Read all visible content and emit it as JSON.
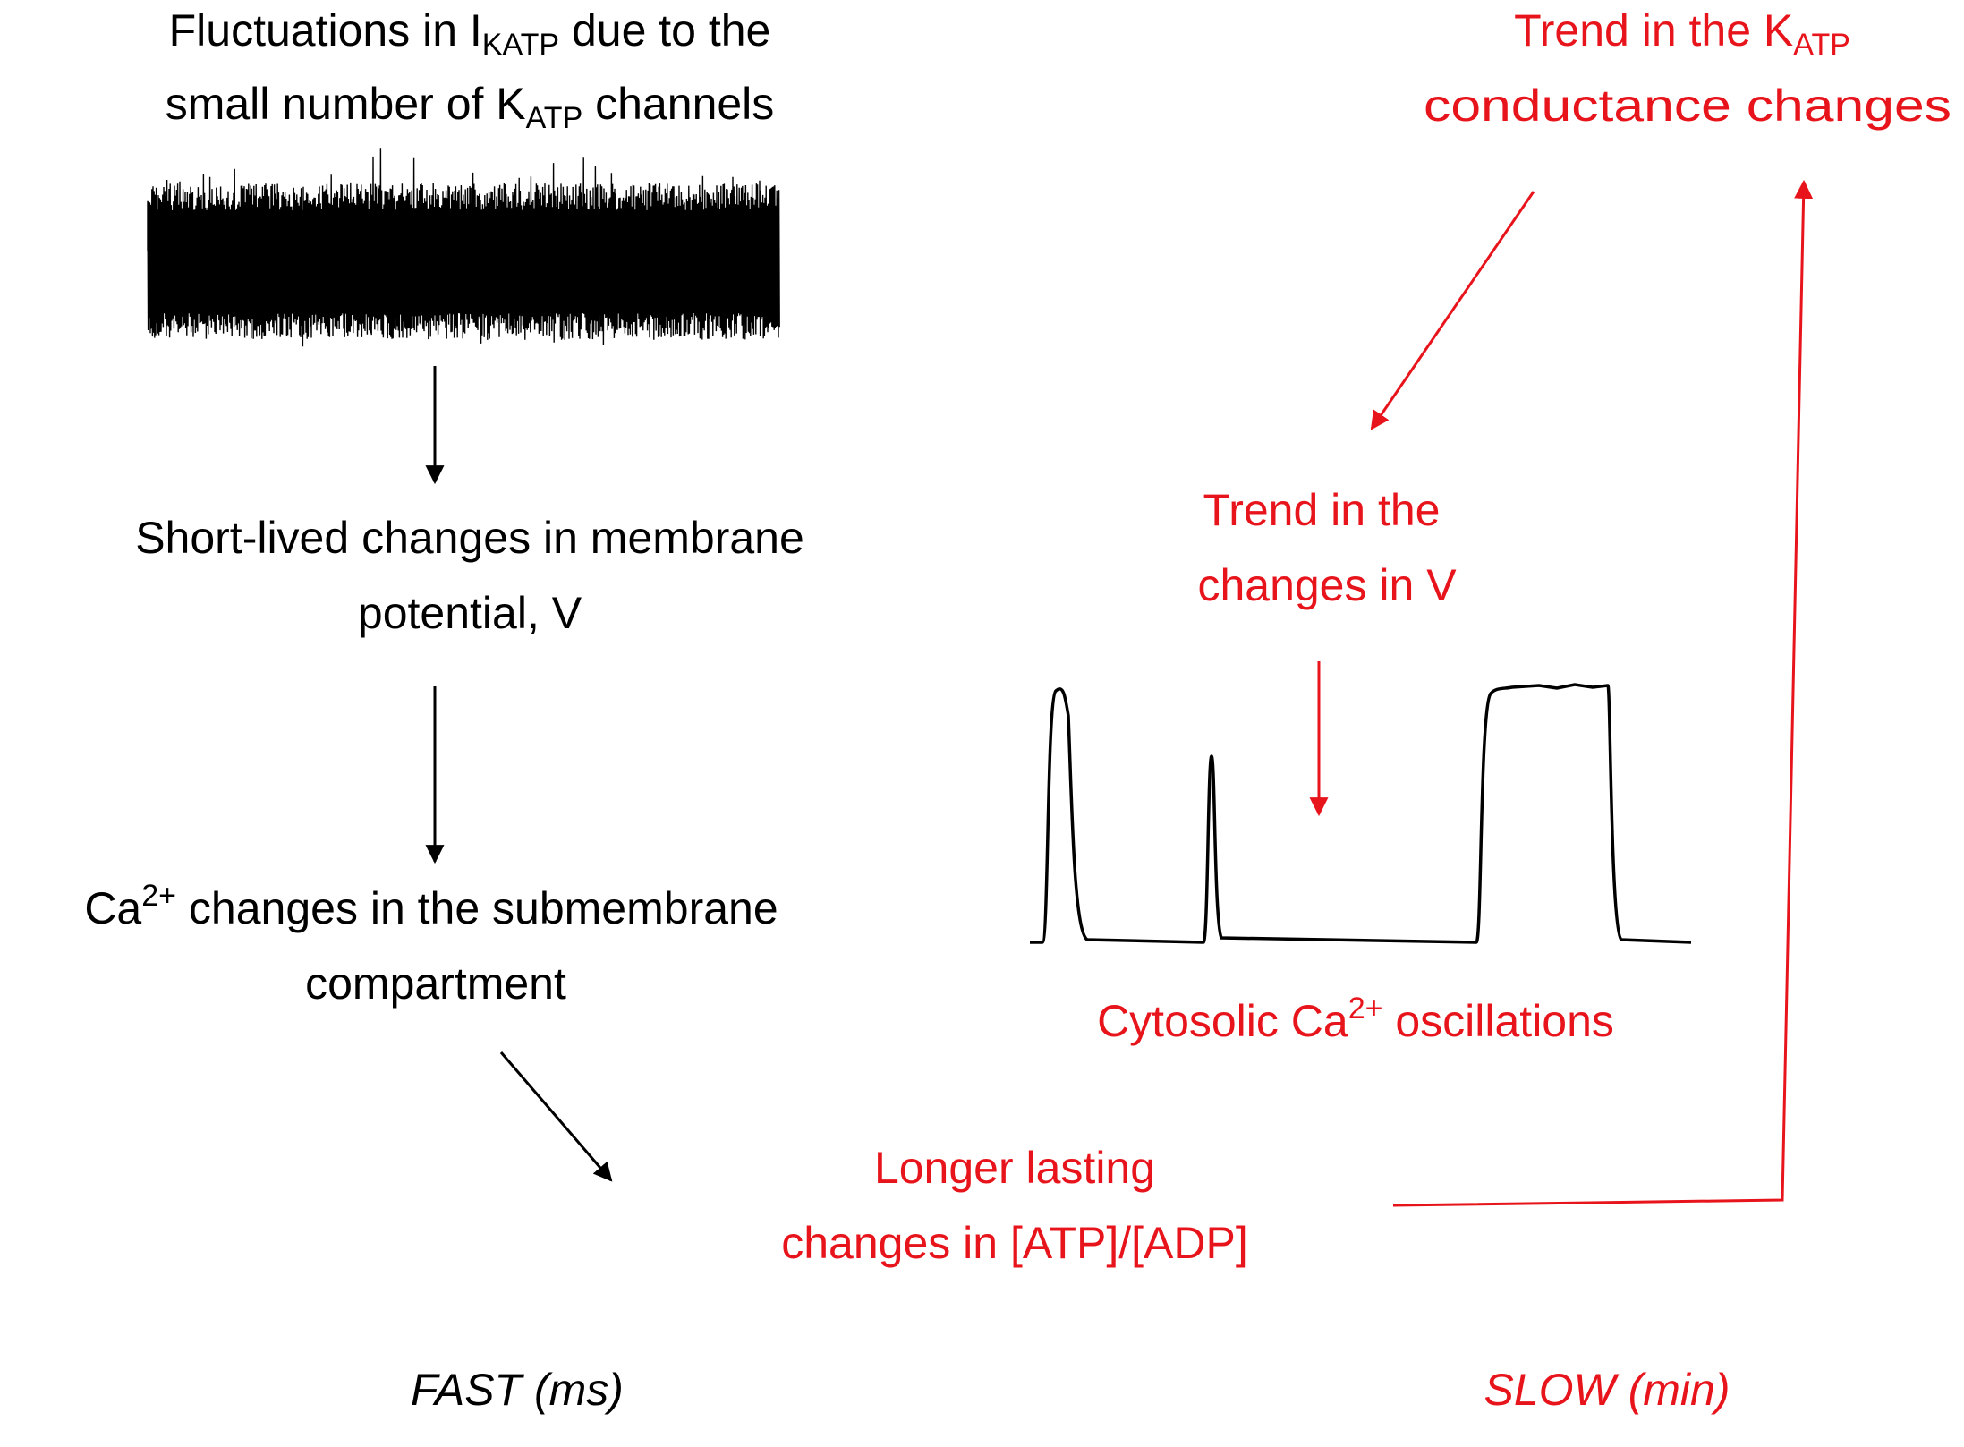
{
  "nodes": [
    {
      "lines": [
        [
          "Fluctuations in I",
          "KATP",
          " due to the"
        ],
        [
          "small number of K",
          "ATP",
          " channels"
        ]
      ]
    },
    {
      "lines": [
        [
          "Short-lived changes in membrane"
        ],
        [
          "potential, V"
        ]
      ]
    },
    {
      "lines": [
        [
          "Ca",
          "2+",
          " changes in the submembrane"
        ],
        [
          "compartment"
        ]
      ]
    },
    {
      "lines": [
        [
          "Longer lasting"
        ],
        [
          "changes in [ATP]/[ADP]"
        ]
      ]
    },
    {
      "lines": [
        [
          "Trend in the K",
          "ATP"
        ],
        [
          "conductance changes"
        ]
      ]
    },
    {
      "lines": [
        [
          "Trend in the"
        ],
        [
          "changes in V"
        ]
      ]
    },
    {
      "lines": [
        [
          "Cytosolic Ca",
          "2+",
          " oscillations"
        ]
      ]
    }
  ],
  "timescales": {
    "fast": "FAST (ms)",
    "slow": "SLOW (min)"
  }
}
